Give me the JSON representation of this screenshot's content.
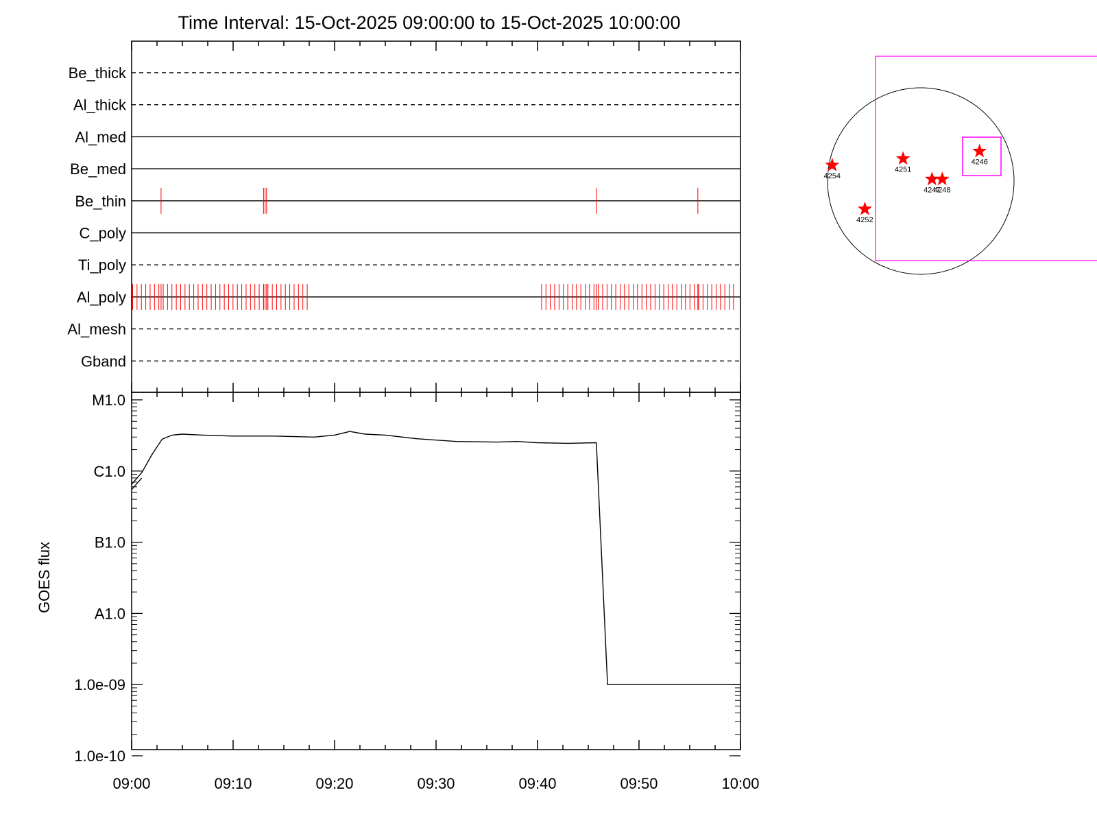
{
  "chart_data": [
    {
      "type": "timeline",
      "title": "Time Interval: 15-Oct-2025 09:00:00 to 15-Oct-2025 10:00:00",
      "xlim": [
        "09:00",
        "10:00"
      ],
      "x_ticks": [
        "09:00",
        "09:10",
        "09:20",
        "09:30",
        "09:40",
        "09:50",
        "10:00"
      ],
      "colors": {
        "line": "#000000",
        "event": "#ff0000"
      },
      "rows": [
        {
          "label": "Be_thick",
          "style": "dashed",
          "events": []
        },
        {
          "label": "Al_thick",
          "style": "dashed",
          "events": []
        },
        {
          "label": "Al_med",
          "style": "solid",
          "events": []
        },
        {
          "label": "Be_med",
          "style": "solid",
          "events": []
        },
        {
          "label": "Be_thin",
          "style": "solid",
          "events": [
            2.9,
            13.0,
            13.15,
            13.3,
            45.8,
            55.8
          ]
        },
        {
          "label": "C_poly",
          "style": "solid",
          "events": []
        },
        {
          "label": "Ti_poly",
          "style": "dashed",
          "events": []
        },
        {
          "label": "Al_poly",
          "style": "solid",
          "event_groups": [
            {
              "start": 0.1,
              "end": 17.6,
              "step": 0.43
            },
            {
              "start": 40.4,
              "end": 59.7,
              "step": 0.43
            }
          ],
          "events": [
            2.9,
            13.0,
            13.15,
            13.3,
            45.8,
            55.8
          ]
        },
        {
          "label": "Al_mesh",
          "style": "dashed",
          "events": []
        },
        {
          "label": "Gband",
          "style": "dashed",
          "events": []
        }
      ]
    },
    {
      "type": "line",
      "ylabel": "GOES flux",
      "yscale": "log",
      "ylim": [
        1e-10,
        1e-05
      ],
      "y_ticks": [
        {
          "value": 1e-05,
          "label": "M1.0"
        },
        {
          "value": 1e-06,
          "label": "C1.0"
        },
        {
          "value": 1e-07,
          "label": "B1.0"
        },
        {
          "value": 1e-08,
          "label": "A1.0"
        },
        {
          "value": 1e-09,
          "label": "1.0e-09"
        },
        {
          "value": 1e-10,
          "label": "1.0e-10"
        }
      ],
      "x_ticks": [
        "09:00",
        "09:10",
        "09:20",
        "09:30",
        "09:40",
        "09:50",
        "10:00"
      ],
      "colors": {
        "line": "#000000"
      },
      "series": [
        {
          "x": [
            0,
            1,
            2,
            3,
            4,
            5,
            7,
            10,
            14,
            18,
            20,
            21.5,
            23,
            25,
            28,
            32,
            36,
            38,
            40,
            43,
            45.8,
            46.9,
            50,
            55,
            60
          ],
          "y": [
            6.5e-07,
            9.5e-07,
            1.7e-06,
            2.8e-06,
            3.2e-06,
            3.3e-06,
            3.2e-06,
            3.1e-06,
            3.1e-06,
            3e-06,
            3.2e-06,
            3.6e-06,
            3.3e-06,
            3.2e-06,
            2.85e-06,
            2.6e-06,
            2.55e-06,
            2.6e-06,
            2.5e-06,
            2.45e-06,
            2.5e-06,
            1e-09,
            1e-09,
            1e-09,
            1e-09
          ]
        },
        {
          "x": [
            0,
            1
          ],
          "y": [
            5.5e-07,
            8e-07
          ]
        }
      ]
    },
    {
      "type": "scatter",
      "subject": "solar-disk-map",
      "colors": {
        "disk": "#000000",
        "marker": "#ff0000",
        "box": "#ff00ff"
      },
      "points": [
        {
          "label": "4254",
          "x": -0.95,
          "y": 0.17
        },
        {
          "label": "4251",
          "x": -0.19,
          "y": 0.24
        },
        {
          "label": "4246",
          "x": 0.63,
          "y": 0.32
        },
        {
          "label": "4247",
          "x": 0.12,
          "y": 0.02
        },
        {
          "label": "4248",
          "x": 0.23,
          "y": 0.02
        },
        {
          "label": "4252",
          "x": -0.6,
          "y": -0.3
        }
      ]
    }
  ]
}
